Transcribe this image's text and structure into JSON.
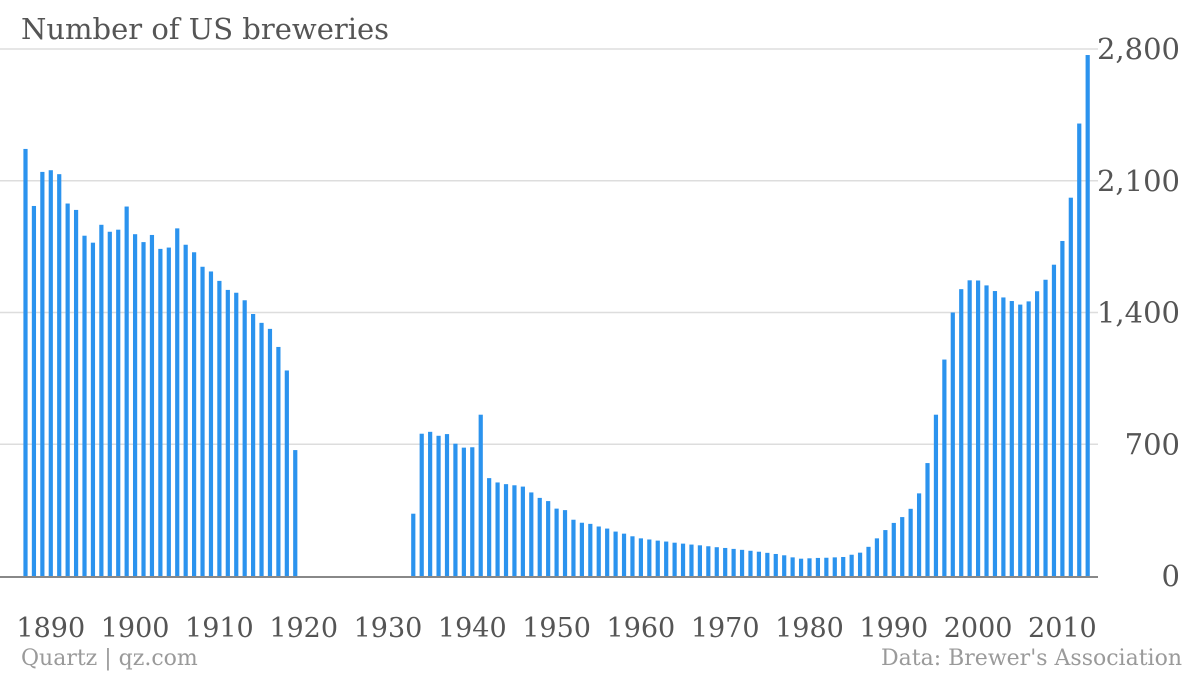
{
  "title": "Number of US breweries",
  "source_left": "Quartz | qz.com",
  "source_right": "Data: Brewer's Association",
  "colors": {
    "bar": "#2b93ee",
    "grid": "#dddddd",
    "axis": "#888888",
    "text": "#555555"
  },
  "chart_data": {
    "type": "bar",
    "title": "Number of US breweries",
    "xlabel": "",
    "ylabel": "",
    "ylim": [
      0,
      2800
    ],
    "yticks": [
      0,
      700,
      1400,
      2100,
      2800
    ],
    "ytick_labels": [
      "0",
      "700",
      "1,400",
      "2,100",
      "2,800"
    ],
    "xlim": [
      1887,
      2013
    ],
    "xticks": [
      1890,
      1900,
      1910,
      1920,
      1930,
      1940,
      1950,
      1960,
      1970,
      1980,
      1990,
      2000,
      2010
    ],
    "grid": true,
    "y_axis_side": "right",
    "series": [
      {
        "x": [
          1887,
          1888,
          1889,
          1890,
          1891,
          1892,
          1893,
          1894,
          1895,
          1896,
          1897,
          1898,
          1899,
          1900,
          1901,
          1902,
          1903,
          1904,
          1905,
          1906,
          1907,
          1908,
          1909,
          1910,
          1911,
          1912,
          1913,
          1914,
          1915,
          1916,
          1917,
          1918,
          1919,
          1933,
          1934,
          1935,
          1936,
          1937,
          1938,
          1939,
          1940,
          1941,
          1942,
          1943,
          1944,
          1945,
          1946,
          1947,
          1948,
          1949,
          1950,
          1951,
          1952,
          1953,
          1954,
          1955,
          1956,
          1957,
          1958,
          1959,
          1960,
          1961,
          1962,
          1963,
          1964,
          1965,
          1966,
          1967,
          1968,
          1969,
          1970,
          1971,
          1972,
          1973,
          1974,
          1975,
          1976,
          1977,
          1978,
          1979,
          1980,
          1981,
          1982,
          1983,
          1984,
          1985,
          1986,
          1987,
          1988,
          1989,
          1990,
          1991,
          1992,
          1993,
          1994,
          1995,
          1996,
          1997,
          1998,
          1999,
          2000,
          2001,
          2002,
          2003,
          2004,
          2005,
          2006,
          2007,
          2008,
          2009,
          2010,
          2011,
          2012,
          2013
        ],
        "values": [
          2269,
          1966,
          2147,
          2156,
          2135,
          1979,
          1945,
          1808,
          1771,
          1866,
          1829,
          1840,
          1963,
          1816,
          1774,
          1812,
          1738,
          1745,
          1847,
          1760,
          1720,
          1643,
          1618,
          1568,
          1520,
          1505,
          1465,
          1392,
          1345,
          1313,
          1217,
          1092,
          669,
          331,
          756,
          766,
          745,
          754,
          703,
          682,
          684,
          857,
          520,
          497,
          488,
          482,
          475,
          444,
          415,
          398,
          358,
          350,
          299,
          283,
          277,
          263,
          252,
          236,
          225,
          211,
          200,
          194,
          188,
          183,
          177,
          172,
          167,
          163,
          158,
          153,
          149,
          144,
          139,
          134,
          129,
          123,
          117,
          110,
          99,
          92,
          94,
          96,
          97,
          99,
          101,
          113,
          124,
          155,
          200,
          244,
          282,
          313,
          357,
          439,
          600,
          857,
          1150,
          1400,
          1524,
          1571,
          1570,
          1544,
          1514,
          1480,
          1461,
          1442,
          1459,
          1513,
          1574,
          1654,
          1780,
          2010,
          2404,
          2768
        ]
      }
    ]
  }
}
